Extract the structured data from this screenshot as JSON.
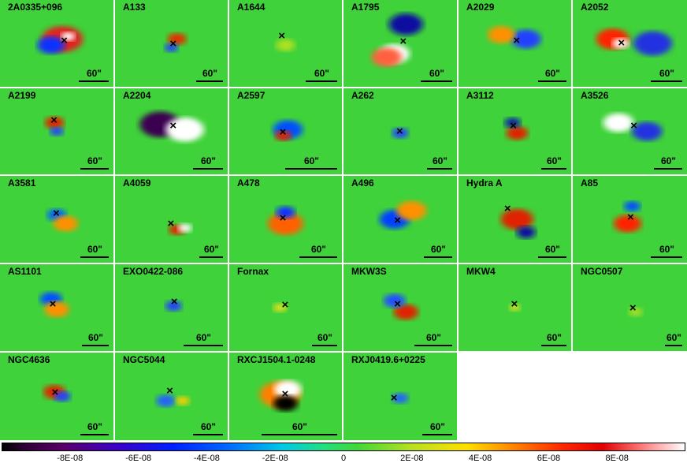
{
  "panels": [
    {
      "name": "2A0335+096",
      "scale": "60\""
    },
    {
      "name": "A133",
      "scale": "60\""
    },
    {
      "name": "A1644",
      "scale": "60\""
    },
    {
      "name": "A1795",
      "scale": "60\""
    },
    {
      "name": "A2029",
      "scale": "60\""
    },
    {
      "name": "A2052",
      "scale": "60\""
    },
    {
      "name": "A2199",
      "scale": "60\""
    },
    {
      "name": "A2204",
      "scale": "60\""
    },
    {
      "name": "A2597",
      "scale": "60\""
    },
    {
      "name": "A262",
      "scale": "60\""
    },
    {
      "name": "A3112",
      "scale": "60\""
    },
    {
      "name": "A3526",
      "scale": "60\""
    },
    {
      "name": "A3581",
      "scale": "60\""
    },
    {
      "name": "A4059",
      "scale": "60\""
    },
    {
      "name": "A478",
      "scale": "60\""
    },
    {
      "name": "A496",
      "scale": "60\""
    },
    {
      "name": "Hydra A",
      "scale": "60\""
    },
    {
      "name": "A85",
      "scale": "60\""
    },
    {
      "name": "AS1101",
      "scale": "60\""
    },
    {
      "name": "EXO0422-086",
      "scale": "60\""
    },
    {
      "name": "Fornax",
      "scale": "60\""
    },
    {
      "name": "MKW3S",
      "scale": "60\""
    },
    {
      "name": "MKW4",
      "scale": "60\""
    },
    {
      "name": "NGC0507",
      "scale": "60\""
    },
    {
      "name": "NGC4636",
      "scale": "60\""
    },
    {
      "name": "NGC5044",
      "scale": "60\""
    },
    {
      "name": "RXCJ1504.1-0248",
      "scale": "60\""
    },
    {
      "name": "RXJ0419.6+0225",
      "scale": "60\""
    }
  ],
  "center_marker": "×",
  "colorbar": {
    "ticks": [
      "-8E-08",
      "-6E-08",
      "-4E-08",
      "-2E-08",
      "0",
      "2E-08",
      "4E-08",
      "6E-08",
      "8E-08"
    ],
    "tick_values": [
      -8e-08,
      -6e-08,
      -4e-08,
      -2e-08,
      0,
      2e-08,
      4e-08,
      6e-08,
      8e-08
    ],
    "range": [
      -1e-07,
      1e-07
    ]
  }
}
